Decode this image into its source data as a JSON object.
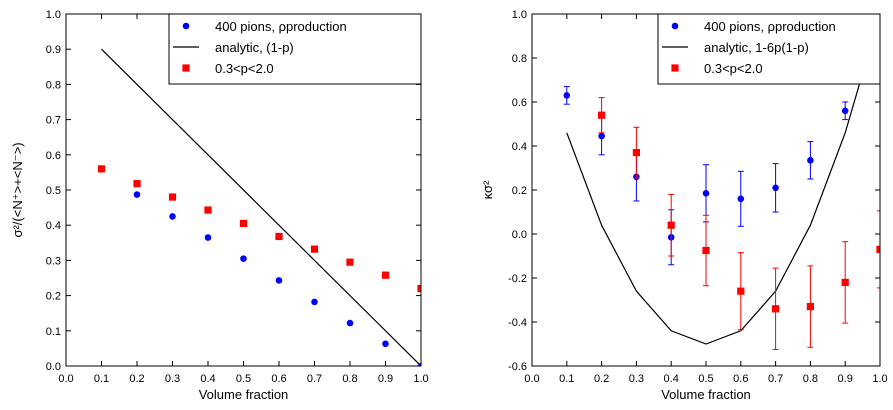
{
  "chart_data": [
    {
      "type": "scatter",
      "xlabel": "Volume fraction",
      "ylabel": "σ²/(<N⁺>+<N⁻>)",
      "xlim": [
        0.0,
        1.0
      ],
      "ylim": [
        0.0,
        1.0
      ],
      "xticks": [
        "0.0",
        "0.1",
        "0.2",
        "0.3",
        "0.4",
        "0.5",
        "0.6",
        "0.7",
        "0.8",
        "0.9",
        "1.0"
      ],
      "yticks": [
        "0.0",
        "0.1",
        "0.2",
        "0.3",
        "0.4",
        "0.5",
        "0.6",
        "0.7",
        "0.8",
        "0.9",
        "1.0"
      ],
      "legend_position": "top-right",
      "series": [
        {
          "name": "400 pions, ρproduction",
          "kind": "points",
          "marker": "circle",
          "color": "#0000ff",
          "x": [
            0.1,
            0.2,
            0.3,
            0.4,
            0.5,
            0.6,
            0.7,
            0.8,
            0.9,
            1.0
          ],
          "y": [
            0.56,
            0.487,
            0.425,
            0.365,
            0.305,
            0.243,
            0.182,
            0.122,
            0.063,
            0.0
          ]
        },
        {
          "name": "analytic, (1-p)",
          "kind": "line",
          "color": "#000000",
          "x": [
            0.1,
            1.0
          ],
          "y": [
            0.9,
            0.0
          ]
        },
        {
          "name": "0.3<p<2.0",
          "kind": "points",
          "marker": "square",
          "color": "#ff0000",
          "x": [
            0.1,
            0.2,
            0.3,
            0.4,
            0.5,
            0.6,
            0.7,
            0.8,
            0.9,
            1.0
          ],
          "y": [
            0.56,
            0.518,
            0.48,
            0.443,
            0.405,
            0.368,
            0.332,
            0.295,
            0.258,
            0.22
          ]
        }
      ]
    },
    {
      "type": "scatter",
      "xlabel": "Volume fraction",
      "ylabel": "κσ²",
      "xlim": [
        0.0,
        1.0
      ],
      "ylim": [
        -0.6,
        1.0
      ],
      "xticks": [
        "0.0",
        "0.1",
        "0.2",
        "0.3",
        "0.4",
        "0.5",
        "0.6",
        "0.7",
        "0.8",
        "0.9",
        "1.0"
      ],
      "yticks": [
        "-0.6",
        "-0.4",
        "-0.2",
        "0.0",
        "0.2",
        "0.4",
        "0.6",
        "0.8",
        "1.0"
      ],
      "legend_position": "top-right",
      "series": [
        {
          "name": "400 pions, ρproduction",
          "kind": "points",
          "marker": "circle",
          "color": "#0000ff",
          "x": [
            0.1,
            0.2,
            0.3,
            0.4,
            0.5,
            0.6,
            0.7,
            0.8,
            0.9
          ],
          "y": [
            0.63,
            0.445,
            0.26,
            -0.015,
            0.185,
            0.16,
            0.21,
            0.335,
            0.56
          ],
          "err": [
            0.04,
            0.085,
            0.11,
            0.125,
            0.13,
            0.125,
            0.11,
            0.085,
            0.04
          ]
        },
        {
          "name": "analytic, 1-6p(1-p)",
          "kind": "line",
          "color": "#000000",
          "x": [
            0.1,
            0.2,
            0.3,
            0.4,
            0.5,
            0.6,
            0.7,
            0.8,
            0.9,
            1.0
          ],
          "y": [
            0.46,
            0.04,
            -0.26,
            -0.44,
            -0.5,
            -0.44,
            -0.26,
            0.04,
            0.46,
            1.0
          ]
        },
        {
          "name": "0.3<p<2.0",
          "kind": "points",
          "marker": "square",
          "color": "#ff0000",
          "x": [
            0.2,
            0.3,
            0.4,
            0.5,
            0.6,
            0.7,
            0.8,
            0.9,
            1.0
          ],
          "y": [
            0.54,
            0.37,
            0.04,
            -0.075,
            -0.26,
            -0.34,
            -0.33,
            -0.22,
            -0.07
          ],
          "err": [
            0.08,
            0.115,
            0.14,
            0.16,
            0.175,
            0.185,
            0.185,
            0.185,
            0.175
          ]
        }
      ]
    }
  ]
}
